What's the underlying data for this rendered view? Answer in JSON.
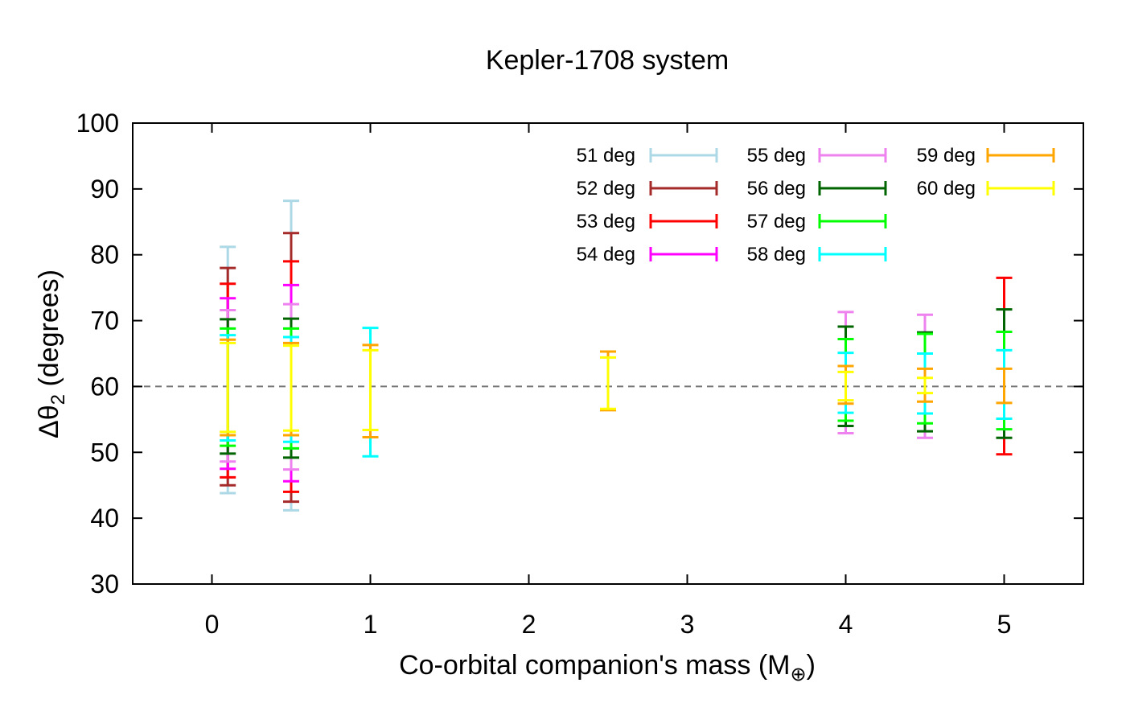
{
  "chart_data": {
    "type": "errorbar",
    "title": "Kepler-1708 system",
    "xlabel_main": "Co-orbital companion's mass (M",
    "xlabel_sub": "⊕",
    "xlabel_close": ")",
    "ylabel_prefix": "Δθ",
    "ylabel_sub": "2",
    "ylabel_suffix": " (degrees)",
    "xlim": [
      -0.5,
      5.5
    ],
    "ylim": [
      30,
      100
    ],
    "xticks": [
      0,
      1,
      2,
      3,
      4,
      5
    ],
    "xtick_labels": [
      "0",
      "1",
      "2",
      "3",
      "4",
      "5"
    ],
    "yticks": [
      30,
      40,
      50,
      60,
      70,
      80,
      90,
      100
    ],
    "ytick_labels": [
      "30",
      "40",
      "50",
      "60",
      "70",
      "80",
      "90",
      "100"
    ],
    "reference_line": 60,
    "series": [
      {
        "name": "51 deg",
        "color": "#add8e6",
        "points": [
          {
            "x": 0.1,
            "low": 43.8,
            "high": 81.2
          },
          {
            "x": 0.5,
            "low": 41.2,
            "high": 88.2
          }
        ]
      },
      {
        "name": "52 deg",
        "color": "#a52a2a",
        "points": [
          {
            "x": 0.1,
            "low": 45.0,
            "high": 78.0
          },
          {
            "x": 0.5,
            "low": 42.5,
            "high": 83.3
          }
        ]
      },
      {
        "name": "53 deg",
        "color": "#ff0000",
        "points": [
          {
            "x": 0.1,
            "low": 46.2,
            "high": 75.6
          },
          {
            "x": 0.5,
            "low": 44.0,
            "high": 79.0
          },
          {
            "x": 5.0,
            "low": 49.7,
            "high": 76.5
          }
        ]
      },
      {
        "name": "54 deg",
        "color": "#ff00ff",
        "points": [
          {
            "x": 0.1,
            "low": 47.5,
            "high": 73.4
          },
          {
            "x": 0.5,
            "low": 45.6,
            "high": 75.4
          }
        ]
      },
      {
        "name": "55 deg",
        "color": "#ee82ee",
        "points": [
          {
            "x": 0.1,
            "low": 48.6,
            "high": 71.6
          },
          {
            "x": 0.5,
            "low": 47.4,
            "high": 72.5
          },
          {
            "x": 4.0,
            "low": 52.9,
            "high": 71.3
          },
          {
            "x": 4.5,
            "low": 52.2,
            "high": 70.9
          }
        ]
      },
      {
        "name": "56 deg",
        "color": "#006400",
        "points": [
          {
            "x": 0.1,
            "low": 49.8,
            "high": 70.2
          },
          {
            "x": 0.5,
            "low": 49.2,
            "high": 70.3
          },
          {
            "x": 4.0,
            "low": 54.0,
            "high": 69.1
          },
          {
            "x": 4.5,
            "low": 53.2,
            "high": 68.2
          },
          {
            "x": 5.0,
            "low": 52.2,
            "high": 71.7
          }
        ]
      },
      {
        "name": "57 deg",
        "color": "#00ff00",
        "points": [
          {
            "x": 0.1,
            "low": 51.0,
            "high": 68.8
          },
          {
            "x": 0.5,
            "low": 50.6,
            "high": 68.8
          },
          {
            "x": 4.0,
            "low": 54.8,
            "high": 67.2
          },
          {
            "x": 4.5,
            "low": 54.4,
            "high": 68.0
          },
          {
            "x": 5.0,
            "low": 53.5,
            "high": 68.3
          }
        ]
      },
      {
        "name": "58 deg",
        "color": "#00ffff",
        "points": [
          {
            "x": 0.1,
            "low": 51.8,
            "high": 67.8
          },
          {
            "x": 0.5,
            "low": 51.6,
            "high": 67.5
          },
          {
            "x": 1.0,
            "low": 49.4,
            "high": 68.9
          },
          {
            "x": 4.0,
            "low": 56.0,
            "high": 65.1
          },
          {
            "x": 4.5,
            "low": 55.9,
            "high": 65.0
          },
          {
            "x": 5.0,
            "low": 55.1,
            "high": 65.5
          }
        ]
      },
      {
        "name": "59 deg",
        "color": "#ffa500",
        "points": [
          {
            "x": 0.1,
            "low": 52.6,
            "high": 67.1
          },
          {
            "x": 0.5,
            "low": 52.6,
            "high": 66.6
          },
          {
            "x": 1.0,
            "low": 52.3,
            "high": 66.3
          },
          {
            "x": 2.5,
            "low": 56.4,
            "high": 65.3
          },
          {
            "x": 4.0,
            "low": 57.4,
            "high": 63.1
          },
          {
            "x": 4.5,
            "low": 57.7,
            "high": 62.7
          },
          {
            "x": 5.0,
            "low": 57.5,
            "high": 62.7
          }
        ]
      },
      {
        "name": "60 deg",
        "color": "#ffff00",
        "points": [
          {
            "x": 0.1,
            "low": 53.1,
            "high": 66.6
          },
          {
            "x": 0.5,
            "low": 53.3,
            "high": 66.2
          },
          {
            "x": 1.0,
            "low": 53.4,
            "high": 65.5
          },
          {
            "x": 2.5,
            "low": 56.6,
            "high": 64.4
          },
          {
            "x": 4.0,
            "low": 57.9,
            "high": 62.2
          },
          {
            "x": 4.5,
            "low": 59.0,
            "high": 61.3
          }
        ]
      }
    ]
  }
}
